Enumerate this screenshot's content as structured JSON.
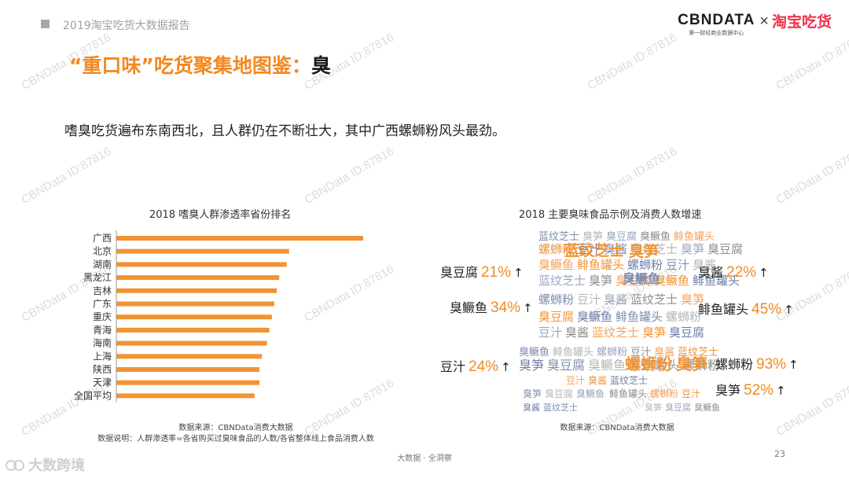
{
  "header": {
    "report_title": "2019淘宝吃货大数据报告",
    "brand_cbn": "CBNDATA",
    "brand_cbn_sub": "第一财经商业数据中心",
    "brand_times": "×",
    "brand_taobao": "淘宝吃货"
  },
  "headline": {
    "prefix": "“重口味”吃货聚集地图鉴：",
    "keyword": "臭"
  },
  "subhead": "嗜臭吃货遍布东南西北，且人群仍在不断壮大，其中广西螺蛳粉风头最劲。",
  "watermark": "CBNData ID:87816",
  "chart_data": [
    {
      "type": "bar",
      "orientation": "horizontal",
      "title": "2018 嗜臭人群渗透率省份排名",
      "categories": [
        "广西",
        "北京",
        "湖南",
        "黑龙江",
        "吉林",
        "广东",
        "重庆",
        "青海",
        "海南",
        "上海",
        "陕西",
        "天津",
        "全国平均"
      ],
      "values": [
        100,
        70,
        69,
        66,
        65,
        64,
        63,
        62,
        61,
        59,
        58,
        58,
        56
      ],
      "value_note": "relative index, axis unlabeled",
      "bar_color": "#f29333",
      "source": "数据来源：CBNData消费大数据",
      "note": "数据说明：人群渗透率=各省购买过臭味食品的人数/各省整体线上食品消费人数"
    },
    {
      "type": "table",
      "title": "2018 主要臭味食品示例及消费人数增速",
      "items": [
        {
          "name": "臭豆腐",
          "growth": "21%",
          "arrow": "↑"
        },
        {
          "name": "臭鳜鱼",
          "growth": "34%",
          "arrow": "↑"
        },
        {
          "name": "豆汁",
          "growth": "24%",
          "arrow": "↑"
        },
        {
          "name": "臭酱",
          "growth": "22%",
          "arrow": "↑"
        },
        {
          "name": "鲱鱼罐头",
          "growth": "45%",
          "arrow": "↑"
        },
        {
          "name": "螺蛳粉",
          "growth": "93%",
          "arrow": "↑"
        },
        {
          "name": "臭笋",
          "growth": "52%",
          "arrow": "↑"
        }
      ],
      "source": "数据来源：CBNData消费大数据",
      "accent_color": "#f08a24"
    }
  ],
  "wordcloud": {
    "words": [
      "蓝纹芝士",
      "臭笋",
      "臭豆腐",
      "臭鳜鱼",
      "鲱鱼罐头",
      "螺蛳粉",
      "豆汁",
      "臭酱"
    ]
  },
  "footer": {
    "logo_text": "大数跨境",
    "center_text": "大数据 · 全洞察",
    "page": "23"
  }
}
